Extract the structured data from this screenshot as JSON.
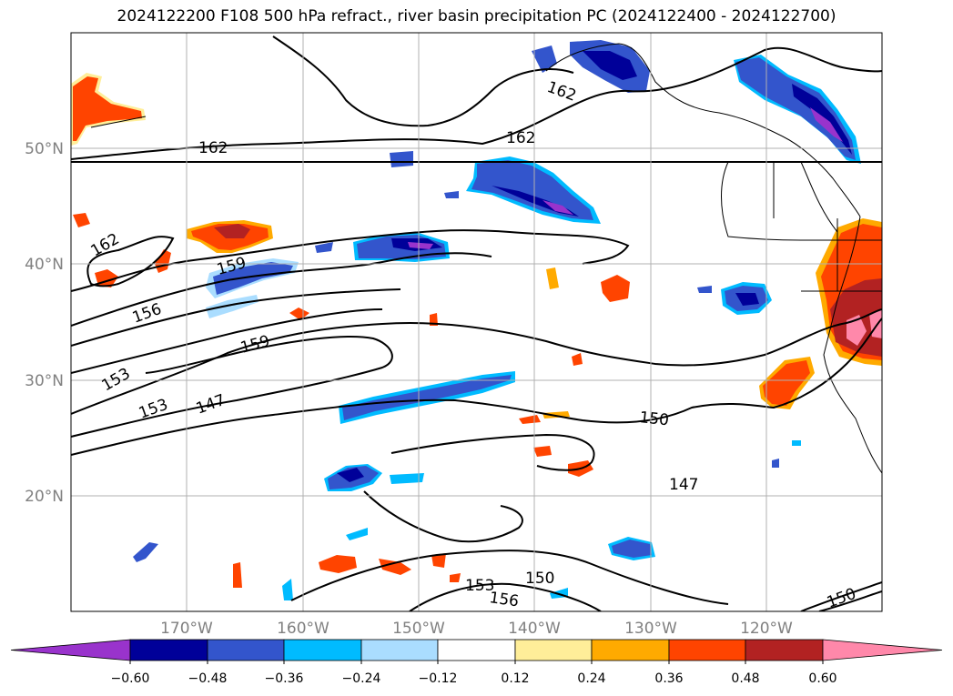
{
  "title": "2024122200 F108 500 hPa refract., river basin precipitation PC (2024122400 - 2024122700)",
  "lat_labels": [
    "50°N",
    "40°N",
    "30°N",
    "20°N"
  ],
  "lon_labels": [
    "170°W",
    "160°W",
    "150°W",
    "140°W",
    "130°W",
    "120°W"
  ],
  "contour_labels": [
    "162",
    "162",
    "162",
    "162",
    "159",
    "159",
    "156",
    "156",
    "153",
    "153",
    "153",
    "150",
    "150",
    "150",
    "147",
    "147"
  ],
  "colorbar": {
    "colors": [
      "#9933cc",
      "#000099",
      "#3355cc",
      "#00bbff",
      "#aaddff",
      "#ffffff",
      "#ffee99",
      "#ffaa00",
      "#ff4400",
      "#b22222",
      "#ff88aa"
    ],
    "tick_labels": [
      "−0.60",
      "−0.48",
      "−0.36",
      "−0.24",
      "−0.12",
      "0.12",
      "0.24",
      "0.36",
      "0.48",
      "0.60"
    ]
  },
  "chart_data": {
    "type": "heatmap",
    "title": "2024122200 F108 500 hPa refract., river basin precipitation PC (2024122400 - 2024122700)",
    "lon_range": [
      -180,
      -110
    ],
    "lat_range": [
      10,
      60
    ],
    "contour_levels": [
      147,
      150,
      153,
      156,
      159,
      162
    ],
    "color_levels": [
      -0.6,
      -0.48,
      -0.36,
      -0.24,
      -0.12,
      0.12,
      0.24,
      0.36,
      0.48,
      0.6
    ],
    "grid": true
  }
}
